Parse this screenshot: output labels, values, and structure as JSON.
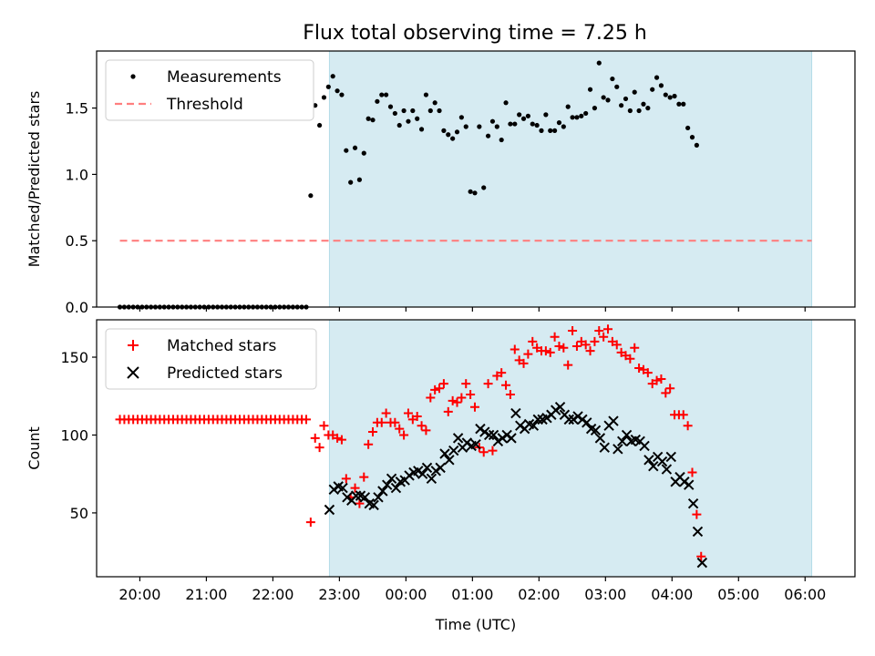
{
  "title": "Flux total observing time = 7.25 h",
  "colors": {
    "band": "#add8e6",
    "band_opacity": 0.5,
    "measurement": "#000000",
    "threshold": "#ff7f7f",
    "matched": "#ff0000",
    "predicted": "#000000"
  },
  "chart_data": [
    {
      "type": "scatter",
      "panel": "top",
      "title": "Flux total observing time = 7.25 h",
      "xlabel": "",
      "ylabel": "Matched/Predicted stars",
      "xlim_hours": [
        19.35,
        30.75
      ],
      "ylim": [
        0,
        1.93
      ],
      "yticks": [
        0.0,
        0.5,
        1.0,
        1.5
      ],
      "ytick_labels": [
        "0.0",
        "0.5",
        "1.0",
        "1.5"
      ],
      "xticks_hours": [
        20,
        21,
        22,
        23,
        24,
        25,
        26,
        27,
        28,
        29,
        30
      ],
      "shaded_span_hours": [
        22.85,
        30.1
      ],
      "legend": {
        "placement": "upper-left",
        "entries": [
          "Measurements",
          "Threshold"
        ]
      },
      "threshold": {
        "name": "Threshold",
        "y": 0.5,
        "x_range_hours": [
          19.7,
          30.1
        ]
      },
      "series": [
        {
          "name": "Measurements",
          "x_hours_start": 19.7,
          "x_step_hours": 0.0667,
          "values": [
            0,
            0,
            0,
            0,
            0,
            0,
            0,
            0,
            0,
            0,
            0,
            0,
            0,
            0,
            0,
            0,
            0,
            0,
            0,
            0,
            0,
            0,
            0,
            0,
            0,
            0,
            0,
            0,
            0,
            0,
            0,
            0,
            0,
            0,
            0,
            0,
            0,
            0,
            0,
            0,
            0,
            0,
            0,
            0.84,
            1.52,
            1.37,
            1.58,
            1.66,
            1.74,
            1.63,
            1.6,
            1.18,
            0.94,
            1.2,
            0.96,
            1.16,
            1.42,
            1.41,
            1.55,
            1.6,
            1.6,
            1.51,
            1.46,
            1.37,
            1.48,
            1.4,
            1.48,
            1.42,
            1.34,
            1.6,
            1.48,
            1.54,
            1.48,
            1.33,
            1.3,
            1.27,
            1.32,
            1.43,
            1.36,
            0.87,
            0.86,
            1.36,
            0.9,
            1.29,
            1.4,
            1.36,
            1.26,
            1.54,
            1.38,
            1.38,
            1.45,
            1.42,
            1.44,
            1.38,
            1.37,
            1.33,
            1.45,
            1.33,
            1.33,
            1.39,
            1.36,
            1.51,
            1.43,
            1.43,
            1.44,
            1.46,
            1.64,
            1.5,
            1.84,
            1.58,
            1.56,
            1.72,
            1.66,
            1.52,
            1.57,
            1.48,
            1.62,
            1.48,
            1.53,
            1.5,
            1.64,
            1.73,
            1.67,
            1.6,
            1.58,
            1.59,
            1.53,
            1.53,
            1.35,
            1.28,
            1.22
          ]
        }
      ]
    },
    {
      "type": "scatter",
      "panel": "bottom",
      "xlabel": "Time (UTC)",
      "ylabel": "Count",
      "xlim_hours": [
        19.35,
        30.75
      ],
      "ylim": [
        9,
        174
      ],
      "yticks": [
        50,
        100,
        150
      ],
      "ytick_labels": [
        "50",
        "100",
        "150"
      ],
      "xticks_hours": [
        20,
        21,
        22,
        23,
        24,
        25,
        26,
        27,
        28,
        29,
        30
      ],
      "xtick_labels": [
        "20:00",
        "21:00",
        "22:00",
        "23:00",
        "00:00",
        "01:00",
        "02:00",
        "03:00",
        "04:00",
        "05:00",
        "06:00"
      ],
      "shaded_span_hours": [
        22.85,
        30.1
      ],
      "legend": {
        "placement": "upper-left",
        "entries": [
          "Matched stars",
          "Predicted stars"
        ]
      },
      "series": [
        {
          "name": "Matched stars",
          "marker": "plus",
          "x_hours_start": 19.7,
          "x_step_hours": 0.0667,
          "values": [
            110,
            110,
            110,
            110,
            110,
            110,
            110,
            110,
            110,
            110,
            110,
            110,
            110,
            110,
            110,
            110,
            110,
            110,
            110,
            110,
            110,
            110,
            110,
            110,
            110,
            110,
            110,
            110,
            110,
            110,
            110,
            110,
            110,
            110,
            110,
            110,
            110,
            110,
            110,
            110,
            110,
            110,
            110,
            44,
            98,
            92,
            106,
            100,
            100,
            98,
            97,
            72,
            60,
            66,
            56,
            73,
            94,
            102,
            108,
            108,
            114,
            108,
            108,
            104,
            100,
            114,
            110,
            112,
            106,
            103,
            124,
            129,
            130,
            133,
            115,
            122,
            121,
            124,
            133,
            126,
            118,
            92,
            89,
            133,
            90,
            138,
            140,
            132,
            126,
            155,
            148,
            146,
            152,
            160,
            156,
            154,
            154,
            153,
            163,
            157,
            156,
            145,
            167,
            157,
            160,
            158,
            154,
            160,
            167,
            163,
            168,
            160,
            158,
            153,
            151,
            149,
            156,
            143,
            142,
            140,
            133,
            135,
            136,
            127,
            130,
            113,
            113,
            113,
            106,
            76,
            49,
            22
          ]
        },
        {
          "name": "Predicted stars",
          "marker": "x",
          "x_start_hours": 22.85,
          "x_step_hours": 0.0667,
          "values": [
            52,
            65,
            67,
            66,
            60,
            58,
            61,
            61,
            60,
            56,
            55,
            60,
            64,
            68,
            72,
            66,
            70,
            71,
            74,
            76,
            77,
            75,
            79,
            72,
            77,
            79,
            88,
            84,
            90,
            98,
            92,
            95,
            93,
            94,
            104,
            102,
            100,
            100,
            96,
            98,
            100,
            98,
            114,
            106,
            104,
            107,
            106,
            110,
            110,
            111,
            113,
            116,
            118,
            113,
            110,
            110,
            112,
            110,
            108,
            104,
            103,
            98,
            92,
            106,
            109,
            91,
            96,
            100,
            96,
            97,
            96,
            93,
            84,
            80,
            86,
            83,
            78,
            86,
            70,
            73,
            70,
            68,
            56,
            38,
            18
          ]
        }
      ]
    }
  ]
}
